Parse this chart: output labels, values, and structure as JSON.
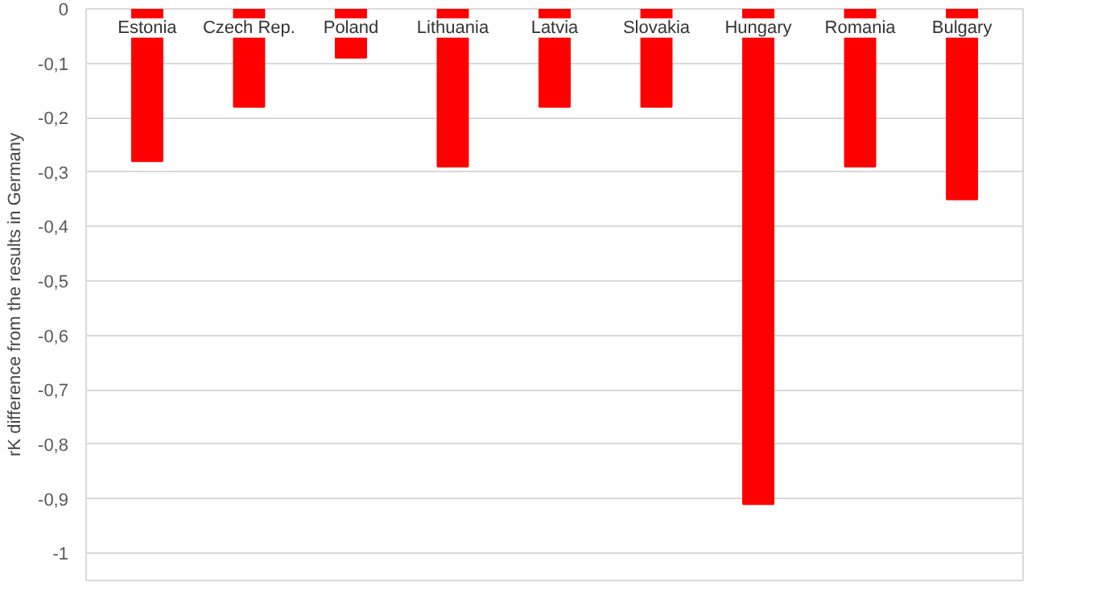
{
  "chart_data": {
    "type": "bar",
    "ylabel": "rK difference from the results in Germany",
    "categories": [
      "Estonia",
      "Czech Rep.",
      "Poland",
      "Lithuania",
      "Latvia",
      "Slovakia",
      "Hungary",
      "Romania",
      "Bulgary"
    ],
    "values": [
      -0.28,
      -0.18,
      -0.09,
      -0.29,
      -0.18,
      -0.18,
      -0.91,
      -0.29,
      -0.35
    ],
    "color": "#ff0000",
    "ylim": [
      -1.05,
      0
    ],
    "yticks": [
      0,
      {
        "value": -0.1,
        "label": "-0,1"
      },
      {
        "value": -0.2,
        "label": "-0,2"
      },
      {
        "value": -0.3,
        "label": "-0,3"
      },
      {
        "value": -0.4,
        "label": "-0,4"
      },
      {
        "value": -0.5,
        "label": "-0,5"
      },
      {
        "value": -0.6,
        "label": "-0,6"
      },
      {
        "value": -0.7,
        "label": "-0,7"
      },
      {
        "value": -0.8,
        "label": "-0,8"
      },
      {
        "value": -0.9,
        "label": "-0,9"
      },
      -1
    ],
    "grid": "y"
  }
}
